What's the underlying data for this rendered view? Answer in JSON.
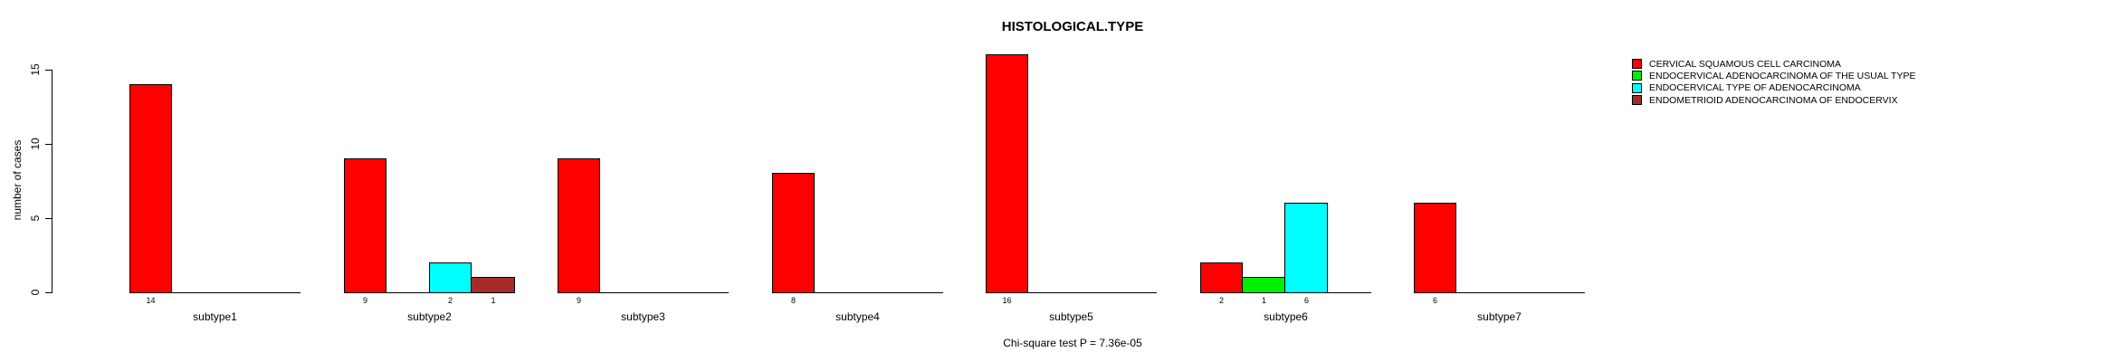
{
  "chart_data": {
    "type": "bar",
    "title": "HISTOLOGICAL.TYPE",
    "subtitle": "Chi-square test P = 7.36e-05",
    "ylabel": "number of cases",
    "ylim": [
      0,
      16
    ],
    "yticks": [
      0,
      5,
      10,
      15
    ],
    "grid": false,
    "legend_position": "top-right",
    "background": "#ffffff",
    "axis_color": "#000000",
    "categories": [
      "subtype1",
      "subtype2",
      "subtype3",
      "subtype4",
      "subtype5",
      "subtype6",
      "subtype7"
    ],
    "series": [
      {
        "name": "CERVICAL SQUAMOUS CELL CARCINOMA",
        "color": "#ff0000",
        "values": [
          14,
          9,
          9,
          8,
          16,
          2,
          6
        ]
      },
      {
        "name": "ENDOCERVICAL ADENOCARCINOMA OF THE USUAL TYPE",
        "color": "#00ee00",
        "values": [
          0,
          0,
          0,
          0,
          0,
          1,
          0
        ]
      },
      {
        "name": "ENDOCERVICAL TYPE OF ADENOCARCINOMA",
        "color": "#00ffff",
        "values": [
          0,
          2,
          0,
          0,
          0,
          6,
          0
        ]
      },
      {
        "name": "ENDOMETRIOID ADENOCARCINOMA OF ENDOCERVIX",
        "color": "#a52a2a",
        "values": [
          0,
          1,
          0,
          0,
          0,
          0,
          0
        ]
      }
    ]
  }
}
